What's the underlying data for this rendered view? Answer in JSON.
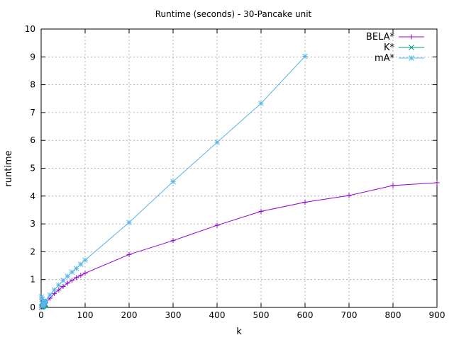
{
  "chart_data": {
    "type": "line",
    "title": "Runtime (seconds) - 30-Pancake unit",
    "xlabel": "k",
    "ylabel": "runtime",
    "xlim": [
      0,
      900
    ],
    "ylim": [
      0,
      10
    ],
    "xticks": [
      0,
      100,
      200,
      300,
      400,
      500,
      600,
      700,
      800,
      900
    ],
    "yticks": [
      0,
      1,
      2,
      3,
      4,
      5,
      6,
      7,
      8,
      9,
      10
    ],
    "grid": true,
    "legend_position": "top-right",
    "series": [
      {
        "name": "BELA*",
        "color": "#9400d3",
        "marker": "plus",
        "x": [
          1,
          2,
          3,
          4,
          5,
          6,
          7,
          8,
          9,
          10,
          20,
          30,
          40,
          50,
          60,
          70,
          80,
          90,
          100,
          200,
          300,
          400,
          500,
          600,
          700,
          800,
          900
        ],
        "y": [
          0.01,
          0.02,
          0.04,
          0.05,
          0.07,
          0.08,
          0.1,
          0.12,
          0.14,
          0.16,
          0.33,
          0.5,
          0.63,
          0.75,
          0.87,
          0.97,
          1.07,
          1.15,
          1.23,
          1.9,
          2.4,
          2.95,
          3.45,
          3.78,
          4.02,
          4.38,
          4.48
        ]
      },
      {
        "name": "K*",
        "color": "#009e73",
        "marker": "cross",
        "x": [
          1,
          2,
          3,
          4,
          5,
          6,
          7,
          8,
          9,
          10
        ],
        "y": [
          0.01,
          0.02,
          0.03,
          0.04,
          0.05,
          0.07,
          0.08,
          0.09,
          0.1,
          0.12
        ]
      },
      {
        "name": "mA*",
        "color": "#56b4e9",
        "marker": "star",
        "x": [
          1,
          2,
          3,
          4,
          5,
          6,
          7,
          8,
          9,
          10,
          20,
          30,
          40,
          50,
          60,
          70,
          80,
          90,
          100,
          200,
          300,
          400,
          500,
          600
        ],
        "y": [
          0.38,
          0.3,
          0.05,
          0.08,
          0.11,
          0.14,
          0.16,
          0.2,
          0.22,
          0.24,
          0.45,
          0.63,
          0.8,
          0.97,
          1.12,
          1.27,
          1.4,
          1.55,
          1.7,
          3.05,
          4.52,
          5.93,
          7.33,
          9.02
        ]
      }
    ]
  }
}
